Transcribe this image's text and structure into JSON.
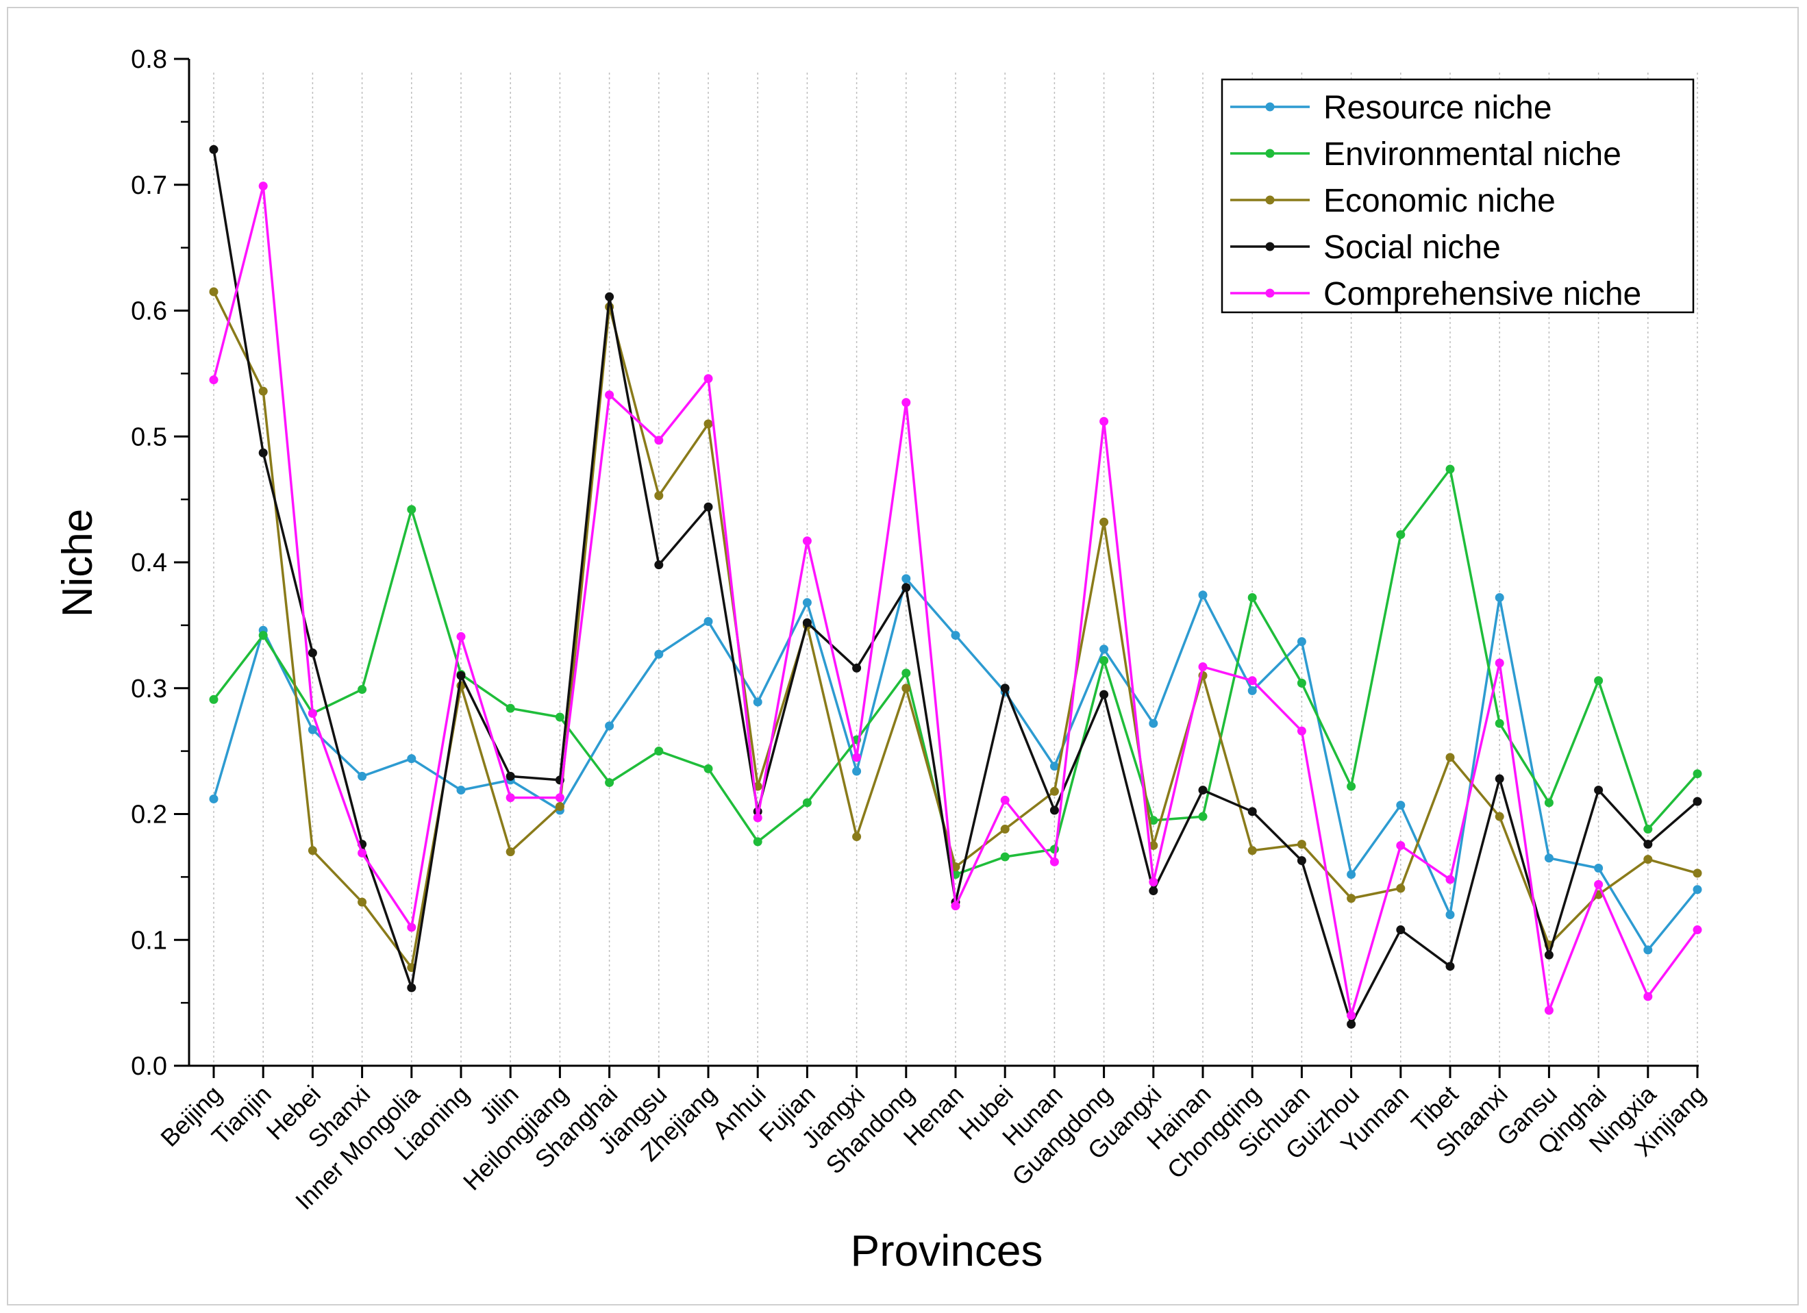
{
  "chart_data": {
    "type": "line",
    "title": "",
    "xlabel": "Provinces",
    "ylabel": "Niche",
    "ylim": [
      0,
      0.8
    ],
    "yticks": [
      "0.0",
      "0.1",
      "0.2",
      "0.3",
      "0.4",
      "0.5",
      "0.6",
      "0.7",
      "0.8"
    ],
    "grid": "vertical dotted lines at each category",
    "legend_position": "top-right",
    "categories": [
      "Beijing",
      "Tianjin",
      "Hebei",
      "Shanxi",
      "Inner Mongolia",
      "Liaoning",
      "Jilin",
      "Heilongjiang",
      "Shanghai",
      "Jiangsu",
      "Zhejiang",
      "Anhui",
      "Fujian",
      "Jiangxi",
      "Shandong",
      "Henan",
      "Hubei",
      "Hunan",
      "Guangdong",
      "Guangxi",
      "Hainan",
      "Chongqing",
      "Sichuan",
      "Guizhou",
      "Yunnan",
      "Tibet",
      "Shaanxi",
      "Gansu",
      "Qinghai",
      "Ningxia",
      "Xinjiang"
    ],
    "series": [
      {
        "name": "Resource niche",
        "color": "#2d9bd1",
        "values": [
          0.212,
          0.346,
          0.267,
          0.23,
          0.244,
          0.219,
          0.227,
          0.203,
          0.27,
          0.327,
          0.353,
          0.289,
          0.368,
          0.234,
          0.387,
          0.342,
          0.297,
          0.238,
          0.331,
          0.272,
          0.374,
          0.298,
          0.337,
          0.152,
          0.207,
          0.12,
          0.372,
          0.165,
          0.157,
          0.092,
          0.14
        ]
      },
      {
        "name": "Environmental niche",
        "color": "#1fbd3a",
        "values": [
          0.291,
          0.342,
          0.28,
          0.299,
          0.442,
          0.311,
          0.284,
          0.277,
          0.225,
          0.25,
          0.236,
          0.178,
          0.209,
          0.259,
          0.312,
          0.152,
          0.166,
          0.172,
          0.322,
          0.195,
          0.198,
          0.372,
          0.304,
          0.222,
          0.422,
          0.474,
          0.272,
          0.209,
          0.306,
          0.188,
          0.232
        ]
      },
      {
        "name": "Economic niche",
        "color": "#8a7b1a",
        "values": [
          0.615,
          0.536,
          0.171,
          0.13,
          0.078,
          0.302,
          0.17,
          0.206,
          0.603,
          0.453,
          0.51,
          0.222,
          0.35,
          0.182,
          0.3,
          0.158,
          0.188,
          0.218,
          0.432,
          0.175,
          0.31,
          0.171,
          0.176,
          0.133,
          0.141,
          0.245,
          0.198,
          0.096,
          0.136,
          0.164,
          0.153
        ]
      },
      {
        "name": "Social niche",
        "color": "#111111",
        "values": [
          0.728,
          0.487,
          0.328,
          0.176,
          0.062,
          0.31,
          0.23,
          0.227,
          0.611,
          0.398,
          0.444,
          0.202,
          0.352,
          0.316,
          0.38,
          0.13,
          0.3,
          0.203,
          0.295,
          0.139,
          0.219,
          0.202,
          0.163,
          0.033,
          0.108,
          0.079,
          0.228,
          0.088,
          0.219,
          0.176,
          0.21
        ]
      },
      {
        "name": "Comprehensive niche",
        "color": "#ff14ff",
        "values": [
          0.545,
          0.699,
          0.28,
          0.169,
          0.11,
          0.341,
          0.213,
          0.213,
          0.533,
          0.497,
          0.546,
          0.197,
          0.417,
          0.245,
          0.527,
          0.127,
          0.211,
          0.162,
          0.512,
          0.146,
          0.317,
          0.306,
          0.266,
          0.04,
          0.175,
          0.148,
          0.32,
          0.044,
          0.144,
          0.055,
          0.108
        ]
      }
    ]
  }
}
